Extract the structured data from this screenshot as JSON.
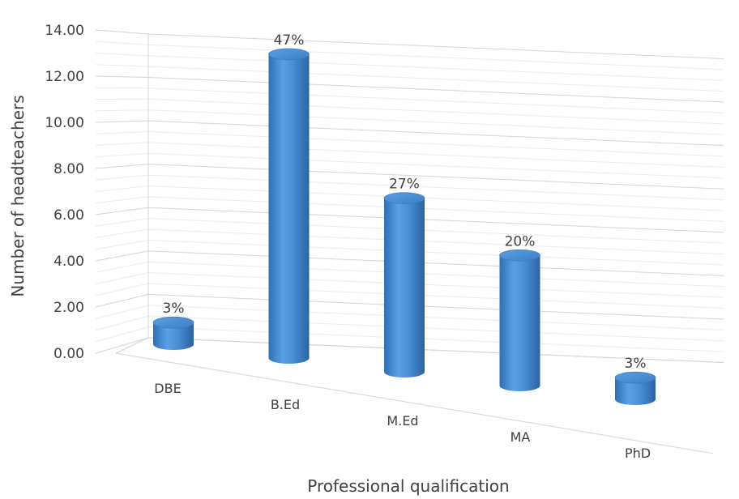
{
  "chart_data": {
    "type": "bar",
    "style": "3d-cylinder",
    "categories": [
      "DBE",
      "B.Ed",
      "M.Ed",
      "MA",
      "PhD"
    ],
    "values": [
      1,
      14,
      8,
      6,
      1
    ],
    "data_labels": [
      "3%",
      "47%",
      "27%",
      "20%",
      "3%"
    ],
    "xlabel": "Professional qualification",
    "ylabel": "Number of headteachers",
    "yticks": [
      "0.00",
      "2.00",
      "4.00",
      "6.00",
      "8.00",
      "10.00",
      "12.00",
      "14.00"
    ],
    "ylim": [
      0,
      14
    ],
    "grid": true,
    "legend": "none",
    "bar_color": "#4a8fd6"
  }
}
